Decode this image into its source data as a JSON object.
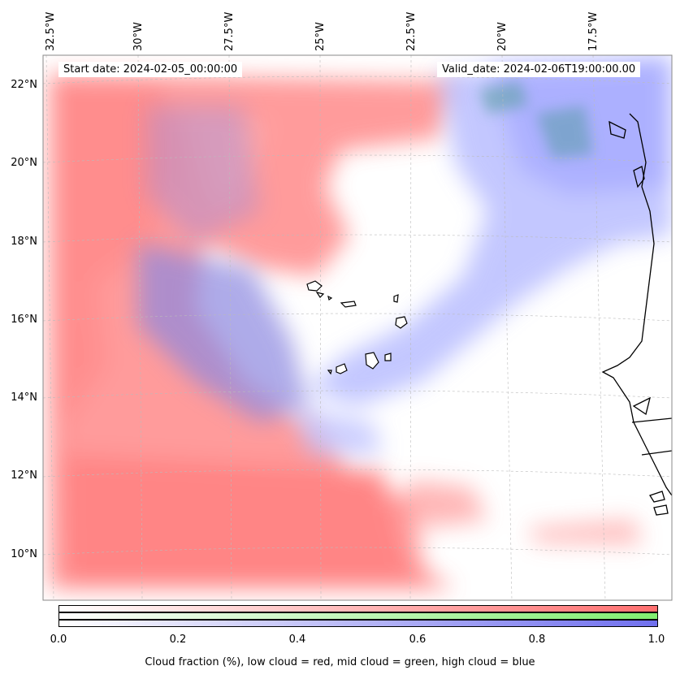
{
  "map": {
    "start_date": "Start date: 2024-02-05_00:00:00",
    "valid_date": "Valid_date: 2024-02-06T19:00:00.00",
    "longitude_labels": [
      "32.5°W",
      "30°W",
      "27.5°W",
      "25°W",
      "22.5°W",
      "20°W",
      "17.5°W"
    ],
    "latitude_labels": [
      "22°N",
      "20°N",
      "18°N",
      "16°N",
      "14°N",
      "12°N",
      "10°N"
    ],
    "features": [
      "cape-verde-islands",
      "west-african-coastline",
      "gridlines"
    ]
  },
  "colorbar": {
    "ticks": [
      "0.0",
      "0.2",
      "0.4",
      "0.6",
      "0.8",
      "1.0"
    ],
    "label": "Cloud fraction (%), low cloud = red, mid cloud = green, high cloud = blue",
    "low_color": "#ff7070",
    "mid_color": "#80ee70",
    "high_color": "#7070ee"
  }
}
